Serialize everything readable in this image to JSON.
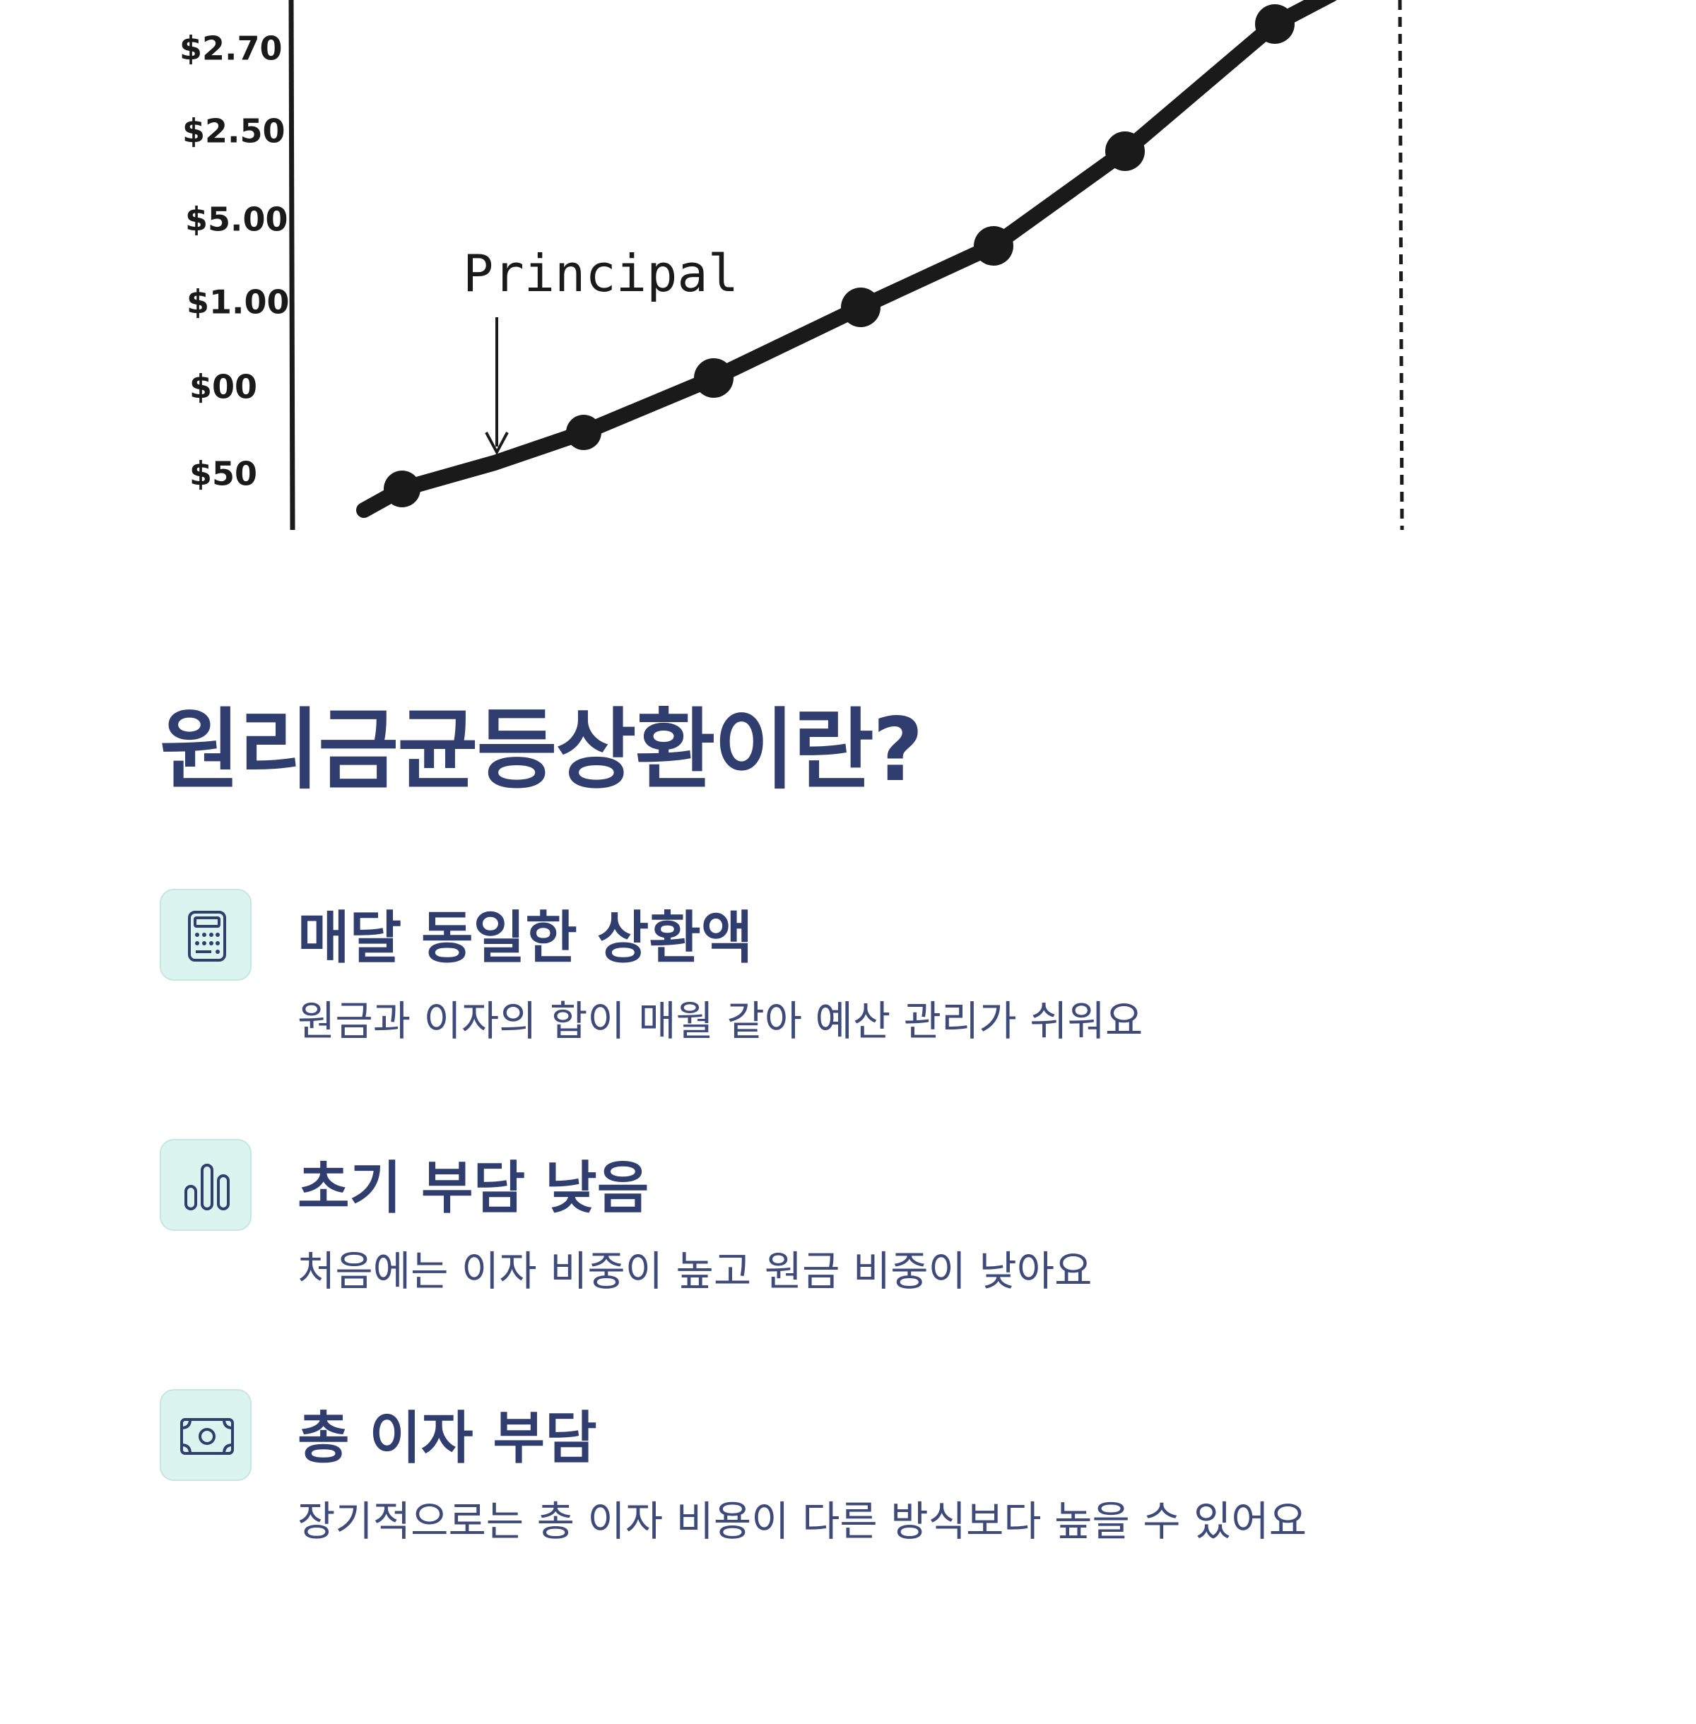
{
  "illustration": {
    "y_labels": [
      "$2.70",
      "$2.50",
      "$5.00",
      "$1.00",
      "$00",
      "$50"
    ],
    "annotation": "Principal"
  },
  "section": {
    "title": "원리금균등상환이란?",
    "items": [
      {
        "heading": "매달 동일한 상환액",
        "description": "원금과 이자의 합이 매월 같아 예산 관리가 쉬워요"
      },
      {
        "heading": "초기 부담 낮음",
        "description": "처음에는 이자 비중이 높고 원금 비중이 낮아요"
      },
      {
        "heading": "총 이자 부담",
        "description": "장기적으로는 총 이자 비용이 다른 방식보다 높을 수 있어요"
      }
    ]
  }
}
